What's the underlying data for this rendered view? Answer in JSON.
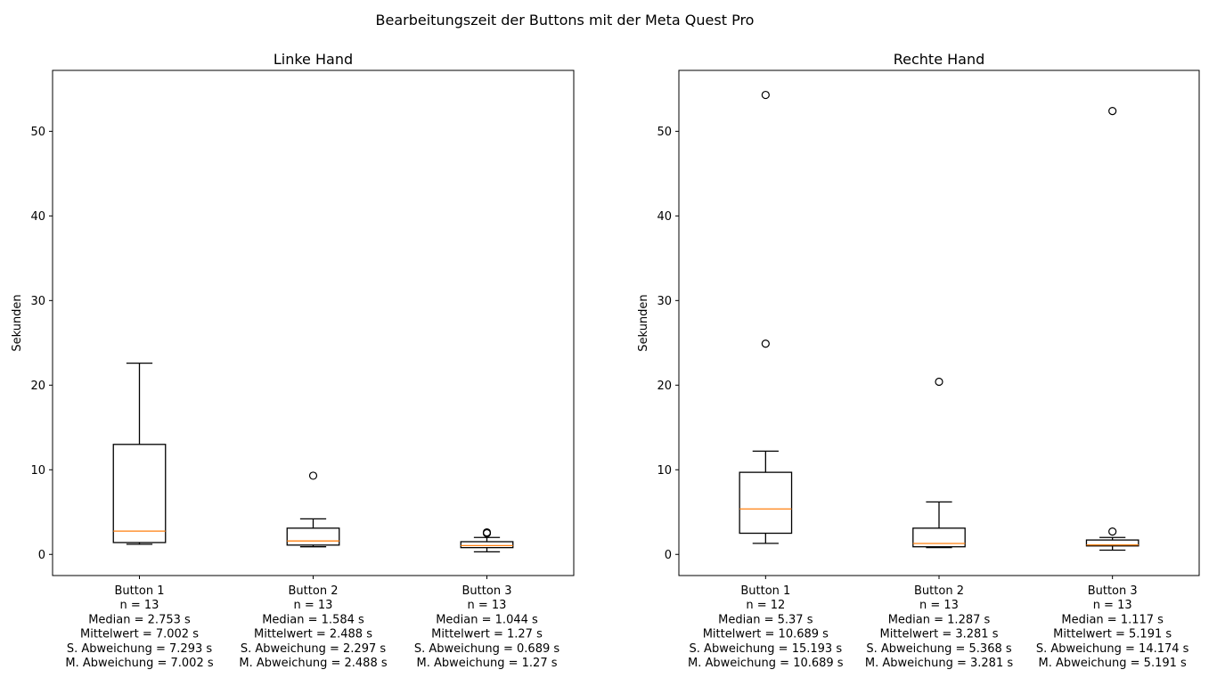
{
  "suptitle": "Bearbeitungszeit der Buttons mit der Meta Quest Pro",
  "chart_data": [
    {
      "type": "box",
      "title": "Linke Hand",
      "ylabel": "Sekunden",
      "ylim": [
        -2.5,
        57.2
      ],
      "yticks": [
        0,
        10,
        20,
        30,
        40,
        50
      ],
      "grid": false,
      "boxes": [
        {
          "label": [
            "Button 1",
            "n = 13",
            "Median = 2.753 s",
            "Mittelwert = 7.002 s",
            "S. Abweichung = 7.293 s",
            "M. Abweichung = 7.002 s"
          ],
          "whisker_low": 1.2,
          "q1": 1.4,
          "median": 2.753,
          "q3": 13.0,
          "whisker_high": 22.6,
          "fliers": []
        },
        {
          "label": [
            "Button 2",
            "n = 13",
            "Median = 1.584 s",
            "Mittelwert = 2.488 s",
            "S. Abweichung = 2.297 s",
            "M. Abweichung = 2.488 s"
          ],
          "whisker_low": 0.9,
          "q1": 1.1,
          "median": 1.584,
          "q3": 3.1,
          "whisker_high": 4.2,
          "fliers": [
            9.3
          ]
        },
        {
          "label": [
            "Button 3",
            "n = 13",
            "Median = 1.044 s",
            "Mittelwert = 1.27 s",
            "S. Abweichung = 0.689 s",
            "M. Abweichung = 1.27 s"
          ],
          "whisker_low": 0.3,
          "q1": 0.8,
          "median": 1.044,
          "q3": 1.5,
          "whisker_high": 2.0,
          "fliers": [
            2.5,
            2.6
          ]
        }
      ]
    },
    {
      "type": "box",
      "title": "Rechte Hand",
      "ylabel": "Sekunden",
      "ylim": [
        -2.5,
        57.2
      ],
      "yticks": [
        0,
        10,
        20,
        30,
        40,
        50
      ],
      "grid": false,
      "boxes": [
        {
          "label": [
            "Button 1",
            "n = 12",
            "Median = 5.37 s",
            "Mittelwert = 10.689 s",
            "S. Abweichung = 15.193 s",
            "M. Abweichung = 10.689 s"
          ],
          "whisker_low": 1.3,
          "q1": 2.5,
          "median": 5.37,
          "q3": 9.7,
          "whisker_high": 12.2,
          "fliers": [
            24.9,
            54.3
          ]
        },
        {
          "label": [
            "Button 2",
            "n = 13",
            "Median = 1.287 s",
            "Mittelwert = 3.281 s",
            "S. Abweichung = 5.368 s",
            "M. Abweichung = 3.281 s"
          ],
          "whisker_low": 0.8,
          "q1": 0.9,
          "median": 1.287,
          "q3": 3.1,
          "whisker_high": 6.2,
          "fliers": [
            20.4
          ]
        },
        {
          "label": [
            "Button 3",
            "n = 13",
            "Median = 1.117 s",
            "Mittelwert = 5.191 s",
            "S. Abweichung = 14.174 s",
            "M. Abweichung = 5.191 s"
          ],
          "whisker_low": 0.5,
          "q1": 1.0,
          "median": 1.117,
          "q3": 1.7,
          "whisker_high": 2.0,
          "fliers": [
            2.7,
            52.4
          ]
        }
      ]
    }
  ],
  "colors": {
    "box": "#000000",
    "median": "#ff7f0e",
    "background": "#ffffff"
  }
}
